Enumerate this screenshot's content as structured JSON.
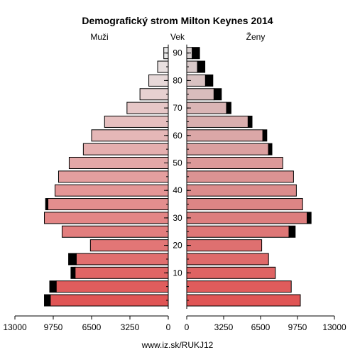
{
  "chart_data": {
    "type": "bar",
    "title": "Demografický strom Milton Keynes 2014",
    "left_label": "Muži",
    "center_label": "Vek",
    "right_label": "Ženy",
    "source": "www.iz.sk/RUKJ12",
    "age_ticks": [
      10,
      20,
      30,
      40,
      50,
      60,
      70,
      80,
      90
    ],
    "x_ticks_left": [
      "13000",
      "9750",
      "6500",
      "3250",
      "0"
    ],
    "x_ticks_right": [
      "0",
      "3250",
      "6500",
      "9750",
      "13000"
    ],
    "xlim": [
      0,
      13000
    ],
    "age_groups": [
      "0-4",
      "5-9",
      "10-14",
      "15-19",
      "20-24",
      "25-29",
      "30-34",
      "35-39",
      "40-44",
      "45-49",
      "50-54",
      "55-59",
      "60-64",
      "65-69",
      "70-74",
      "75-79",
      "80-84",
      "85-89",
      "90+"
    ],
    "series": [
      {
        "name": "Muži",
        "values": [
          10000,
          9500,
          7900,
          7800,
          6600,
          9000,
          10500,
          10200,
          9600,
          9300,
          8400,
          7200,
          6500,
          5400,
          3500,
          2400,
          1650,
          900,
          380
        ],
        "excess": [
          500,
          550,
          350,
          650,
          0,
          0,
          0,
          200,
          0,
          0,
          0,
          0,
          0,
          0,
          0,
          0,
          0,
          0,
          0
        ]
      },
      {
        "name": "Ženy",
        "values": [
          10000,
          9200,
          7800,
          7200,
          6600,
          9000,
          10600,
          10200,
          9650,
          9400,
          8450,
          7200,
          6700,
          5400,
          3500,
          2400,
          1650,
          950,
          480
        ],
        "excess": [
          0,
          0,
          0,
          0,
          0,
          550,
          350,
          0,
          0,
          0,
          0,
          300,
          350,
          350,
          400,
          650,
          650,
          650,
          650
        ]
      }
    ],
    "colors": {
      "male_top": "#e8e8e8",
      "male_bottom": "#e05555",
      "female_top": "#d8d0d0",
      "female_bottom": "#e05555",
      "excess": "#000000"
    }
  }
}
